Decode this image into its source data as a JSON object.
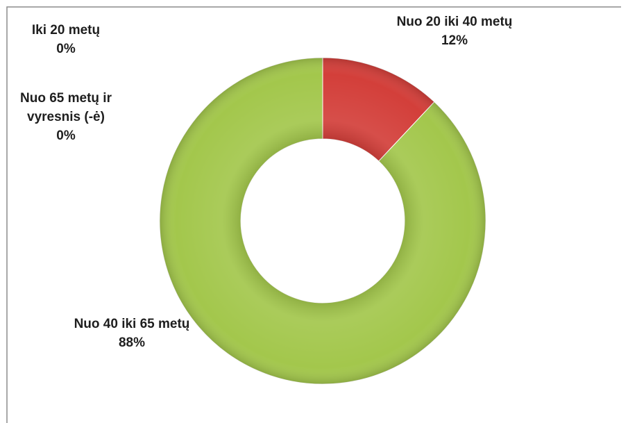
{
  "chart_data": {
    "type": "donut",
    "categories": [
      "Iki 20 metų",
      "Nuo 20 iki 40 metų",
      "Nuo 40 iki 65 metų",
      "Nuo 65 metų ir vyresnis (-ė)"
    ],
    "values": [
      0,
      12,
      88,
      0
    ],
    "value_labels": [
      "0%",
      "12%",
      "88%",
      "0%"
    ],
    "colors": [
      "#4f81bd",
      "#d33f3a",
      "#a3c74c",
      "#8064a2"
    ]
  }
}
